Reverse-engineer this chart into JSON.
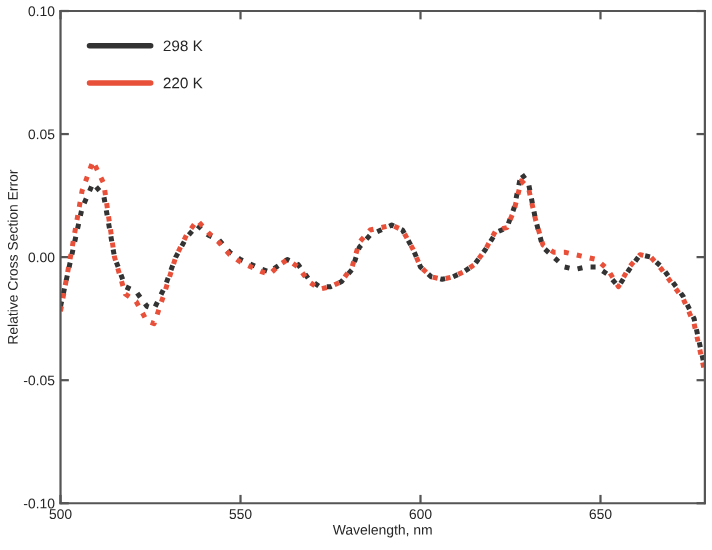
{
  "chart_data": {
    "type": "line",
    "xlabel": "Wavelength, nm",
    "ylabel": "Relative Cross Section Error",
    "x": [
      500,
      503,
      506,
      509,
      512,
      515,
      518,
      521,
      524,
      526,
      529,
      532,
      535,
      538,
      541,
      544,
      547,
      550,
      553,
      556,
      558,
      561,
      563,
      566,
      569,
      572,
      575,
      578,
      581,
      583,
      586,
      589,
      592,
      595,
      598,
      600,
      603,
      606,
      609,
      612,
      615,
      618,
      621,
      624,
      626,
      628,
      630,
      632,
      634,
      637,
      640,
      643,
      646,
      649,
      652,
      655,
      658,
      661,
      664,
      667,
      670,
      673,
      676,
      679
    ],
    "series": [
      {
        "name": "298 K",
        "color": "#333333",
        "values": [
          -0.02,
          0.0,
          0.02,
          0.03,
          0.025,
          0.0,
          -0.012,
          -0.014,
          -0.02,
          -0.021,
          -0.012,
          0.0,
          0.008,
          0.013,
          0.009,
          0.007,
          0.002,
          -0.001,
          -0.003,
          -0.005,
          -0.006,
          -0.003,
          -0.001,
          -0.003,
          -0.009,
          -0.012,
          -0.012,
          -0.01,
          -0.005,
          0.004,
          0.009,
          0.011,
          0.013,
          0.011,
          0.003,
          -0.004,
          -0.008,
          -0.009,
          -0.008,
          -0.006,
          -0.003,
          0.003,
          0.01,
          0.012,
          0.02,
          0.034,
          0.03,
          0.015,
          0.004,
          0.0,
          -0.004,
          -0.005,
          -0.004,
          -0.004,
          -0.007,
          -0.012,
          -0.005,
          0.001,
          0.0,
          -0.004,
          -0.01,
          -0.016,
          -0.025,
          -0.045
        ]
      },
      {
        "name": "220 K",
        "color": "#e8503a",
        "values": [
          -0.022,
          0.002,
          0.027,
          0.039,
          0.03,
          0.0,
          -0.015,
          -0.018,
          -0.026,
          -0.027,
          -0.014,
          0.0,
          0.009,
          0.015,
          0.01,
          0.006,
          0.001,
          -0.002,
          -0.004,
          -0.006,
          -0.007,
          -0.003,
          -0.001,
          -0.004,
          -0.01,
          -0.013,
          -0.012,
          -0.01,
          -0.004,
          0.006,
          0.011,
          0.012,
          0.013,
          0.011,
          0.003,
          -0.004,
          -0.008,
          -0.009,
          -0.008,
          -0.006,
          -0.003,
          0.003,
          0.011,
          0.012,
          0.019,
          0.031,
          0.028,
          0.015,
          0.005,
          0.002,
          0.002,
          0.001,
          0.0,
          -0.001,
          -0.005,
          -0.012,
          -0.004,
          0.001,
          0.0,
          -0.005,
          -0.011,
          -0.017,
          -0.027,
          -0.047
        ]
      }
    ],
    "xlim": [
      500,
      679
    ],
    "xticks": [
      500,
      550,
      600,
      650
    ],
    "ylim": [
      -0.1,
      0.1
    ],
    "yticks": [
      {
        "value": -0.1,
        "label": "-0.10"
      },
      {
        "value": -0.05,
        "label": "-0.05"
      },
      {
        "value": 0,
        "label": "0.00"
      },
      {
        "value": 0.05,
        "label": "0.05"
      },
      {
        "value": 0.1,
        "label": "0.10"
      }
    ],
    "grid": false,
    "legend": "top left",
    "marker": "none",
    "line_style": "dotted"
  }
}
